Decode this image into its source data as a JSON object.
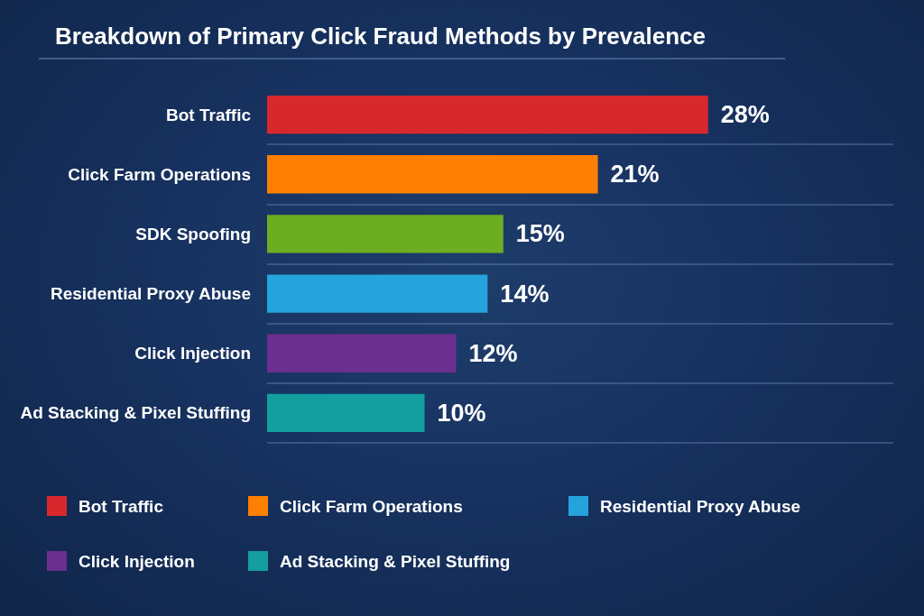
{
  "chart_data": {
    "type": "bar",
    "orientation": "horizontal",
    "stacked": true,
    "title": "Breakdown of Primary Click Fraud Methods by Prevalence",
    "categories": [
      "Bot Traffic",
      "Click Farm Operations",
      "SDK Spoofing",
      "Residential Proxy Abuse",
      "Click Injection",
      "Ad Stacking & Pixel Stuffing"
    ],
    "series": [
      {
        "name": "Bot Traffic",
        "color": "#d9282d",
        "values": [
          28,
          null,
          null,
          null,
          null,
          null
        ],
        "value_labels": [
          "28%",
          null,
          null,
          null,
          null,
          null
        ]
      },
      {
        "name": "Click Farm Operations",
        "color": "#fd8002",
        "values": [
          null,
          21,
          null,
          null,
          null,
          null
        ],
        "value_labels": [
          null,
          "21%",
          null,
          null,
          null,
          null
        ]
      },
      {
        "color": "#6cae1f",
        "values": [
          null,
          null,
          15,
          null,
          null,
          null
        ],
        "value_labels": [
          null,
          null,
          "15%",
          null,
          null,
          null
        ]
      },
      {
        "name": "Residential Proxy Abuse",
        "color": "#25a3dc",
        "values": [
          null,
          null,
          null,
          14,
          null,
          null
        ],
        "value_labels": [
          null,
          null,
          null,
          "14%",
          null,
          null
        ]
      },
      {
        "name": "Click Injection",
        "color": "#6b2f8f",
        "values": [
          null,
          null,
          null,
          null,
          12,
          null
        ],
        "value_labels": [
          null,
          null,
          null,
          null,
          "12%",
          null
        ]
      },
      {
        "name": "Ad Stacking & Pixel Stuffing",
        "color": "#139e9f",
        "values": [
          null,
          null,
          null,
          null,
          null,
          10
        ],
        "value_labels": [
          null,
          null,
          null,
          null,
          null,
          "10%"
        ]
      }
    ],
    "grid": "y",
    "legend": "bottom",
    "tick_labels": "y"
  }
}
